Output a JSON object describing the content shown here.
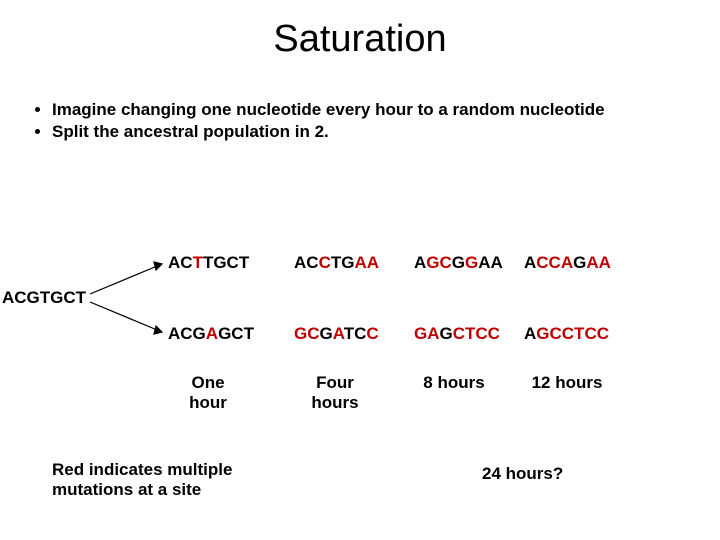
{
  "title": "Saturation",
  "bullets": [
    "Imagine changing one nucleotide every hour to a random nucleotide",
    "Split the ancestral population in 2."
  ],
  "ancestor": "ACGTGCT",
  "sequences": {
    "row1": {
      "c1": [
        {
          "t": "AC"
        },
        {
          "t": "T",
          "r": true
        },
        {
          "t": "TGCT"
        }
      ],
      "c2": [
        {
          "t": "AC"
        },
        {
          "t": "C",
          "r": true
        },
        {
          "t": "TG"
        },
        {
          "t": "AA",
          "r": true
        }
      ],
      "c3": [
        {
          "t": "A"
        },
        {
          "t": "GC",
          "r": true
        },
        {
          "t": "G"
        },
        {
          "t": "G",
          "r": true
        },
        {
          "t": "AA"
        }
      ],
      "c4": [
        {
          "t": "A"
        },
        {
          "t": "CCA",
          "r": true
        },
        {
          "t": "G"
        },
        {
          "t": "AA",
          "r": true
        }
      ]
    },
    "row2": {
      "c1": [
        {
          "t": "ACG"
        },
        {
          "t": "A",
          "r": true
        },
        {
          "t": "GCT"
        }
      ],
      "c2": [
        {
          "t": "GC",
          "r": true
        },
        {
          "t": "G"
        },
        {
          "t": "A",
          "r": true
        },
        {
          "t": "TC"
        },
        {
          "t": "C",
          "r": true
        }
      ],
      "c3": [
        {
          "t": "GA",
          "r": true
        },
        {
          "t": "G"
        },
        {
          "t": "CTCC",
          "r": true
        }
      ],
      "c4": [
        {
          "t": "A"
        },
        {
          "t": "GCCTCC",
          "r": true
        }
      ]
    }
  },
  "timeLabels": {
    "tl1": "One hour",
    "tl2": "Four hours",
    "tl3": "8 hours",
    "tl4": "12 hours"
  },
  "footnote": "Red indicates multiple mutations at a site",
  "question": "24 hours?",
  "colors": {
    "red": "#c00000",
    "black": "#000000"
  },
  "fonts": {
    "title_size": 38,
    "body_size": 17,
    "weight": 700
  }
}
